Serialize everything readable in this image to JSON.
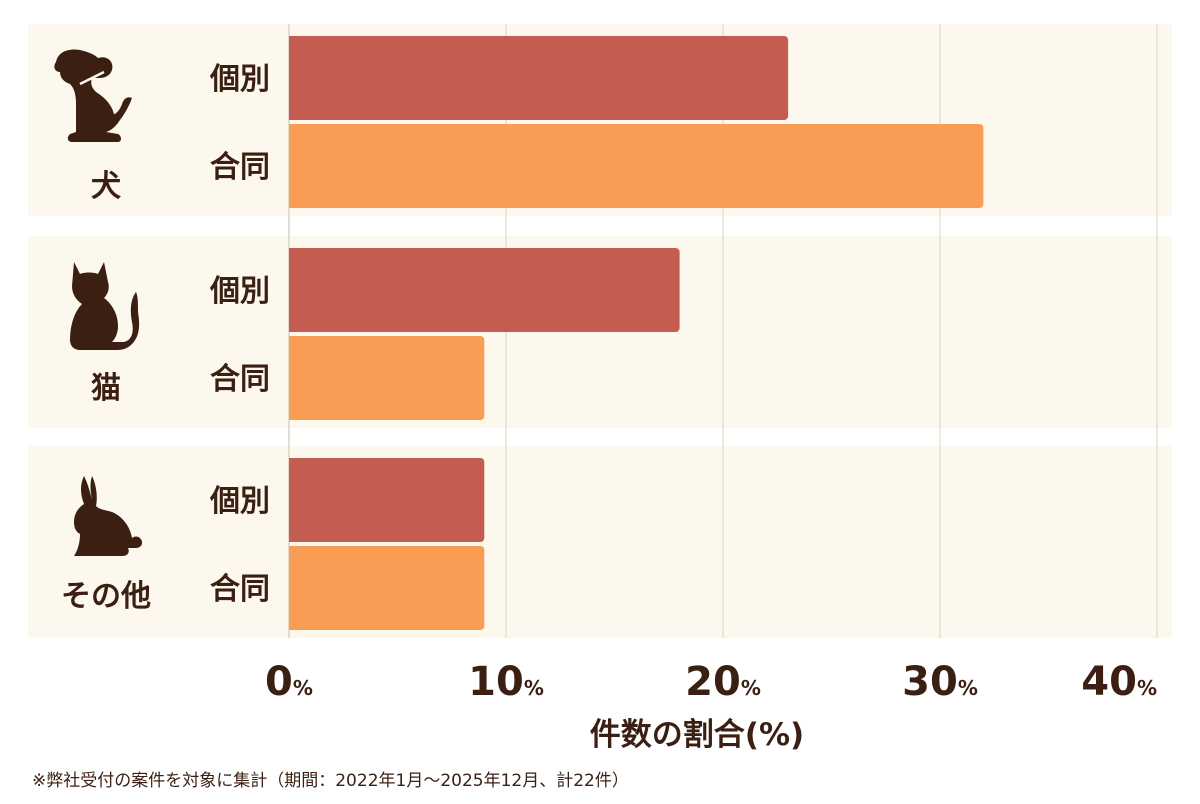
{
  "chart_data": {
    "type": "bar",
    "orientation": "horizontal",
    "xlabel": "件数の割合(%)",
    "xlim": [
      0,
      40
    ],
    "x_ticks": [
      {
        "value": 0,
        "label": "0",
        "unit": "%"
      },
      {
        "value": 10,
        "label": "10",
        "unit": "%"
      },
      {
        "value": 20,
        "label": "20",
        "unit": "%"
      },
      {
        "value": 30,
        "label": "30",
        "unit": "%"
      },
      {
        "value": 40,
        "label": "40",
        "unit": "%"
      }
    ],
    "grid": true,
    "groups": [
      {
        "label": "犬",
        "icon": "dog-icon",
        "bars": [
          {
            "label": "個別",
            "value": 23
          },
          {
            "label": "合同",
            "value": 32
          }
        ]
      },
      {
        "label": "猫",
        "icon": "cat-icon",
        "bars": [
          {
            "label": "個別",
            "value": 18
          },
          {
            "label": "合同",
            "value": 9
          }
        ]
      },
      {
        "label": "その他",
        "icon": "rabbit-icon",
        "bars": [
          {
            "label": "個別",
            "value": 9
          },
          {
            "label": "合同",
            "value": 9
          }
        ]
      }
    ],
    "colors": {
      "個別": "#c45c4f",
      "合同": "#f99d55",
      "group_background": "#fdf8ed",
      "grid": "#d9d4c8",
      "text": "#3b1f12",
      "icon": "#3b1f12"
    }
  },
  "footnote": "※弊社受付の案件を対象に集計（期間：2022年1月～2025年12月、計22件）"
}
